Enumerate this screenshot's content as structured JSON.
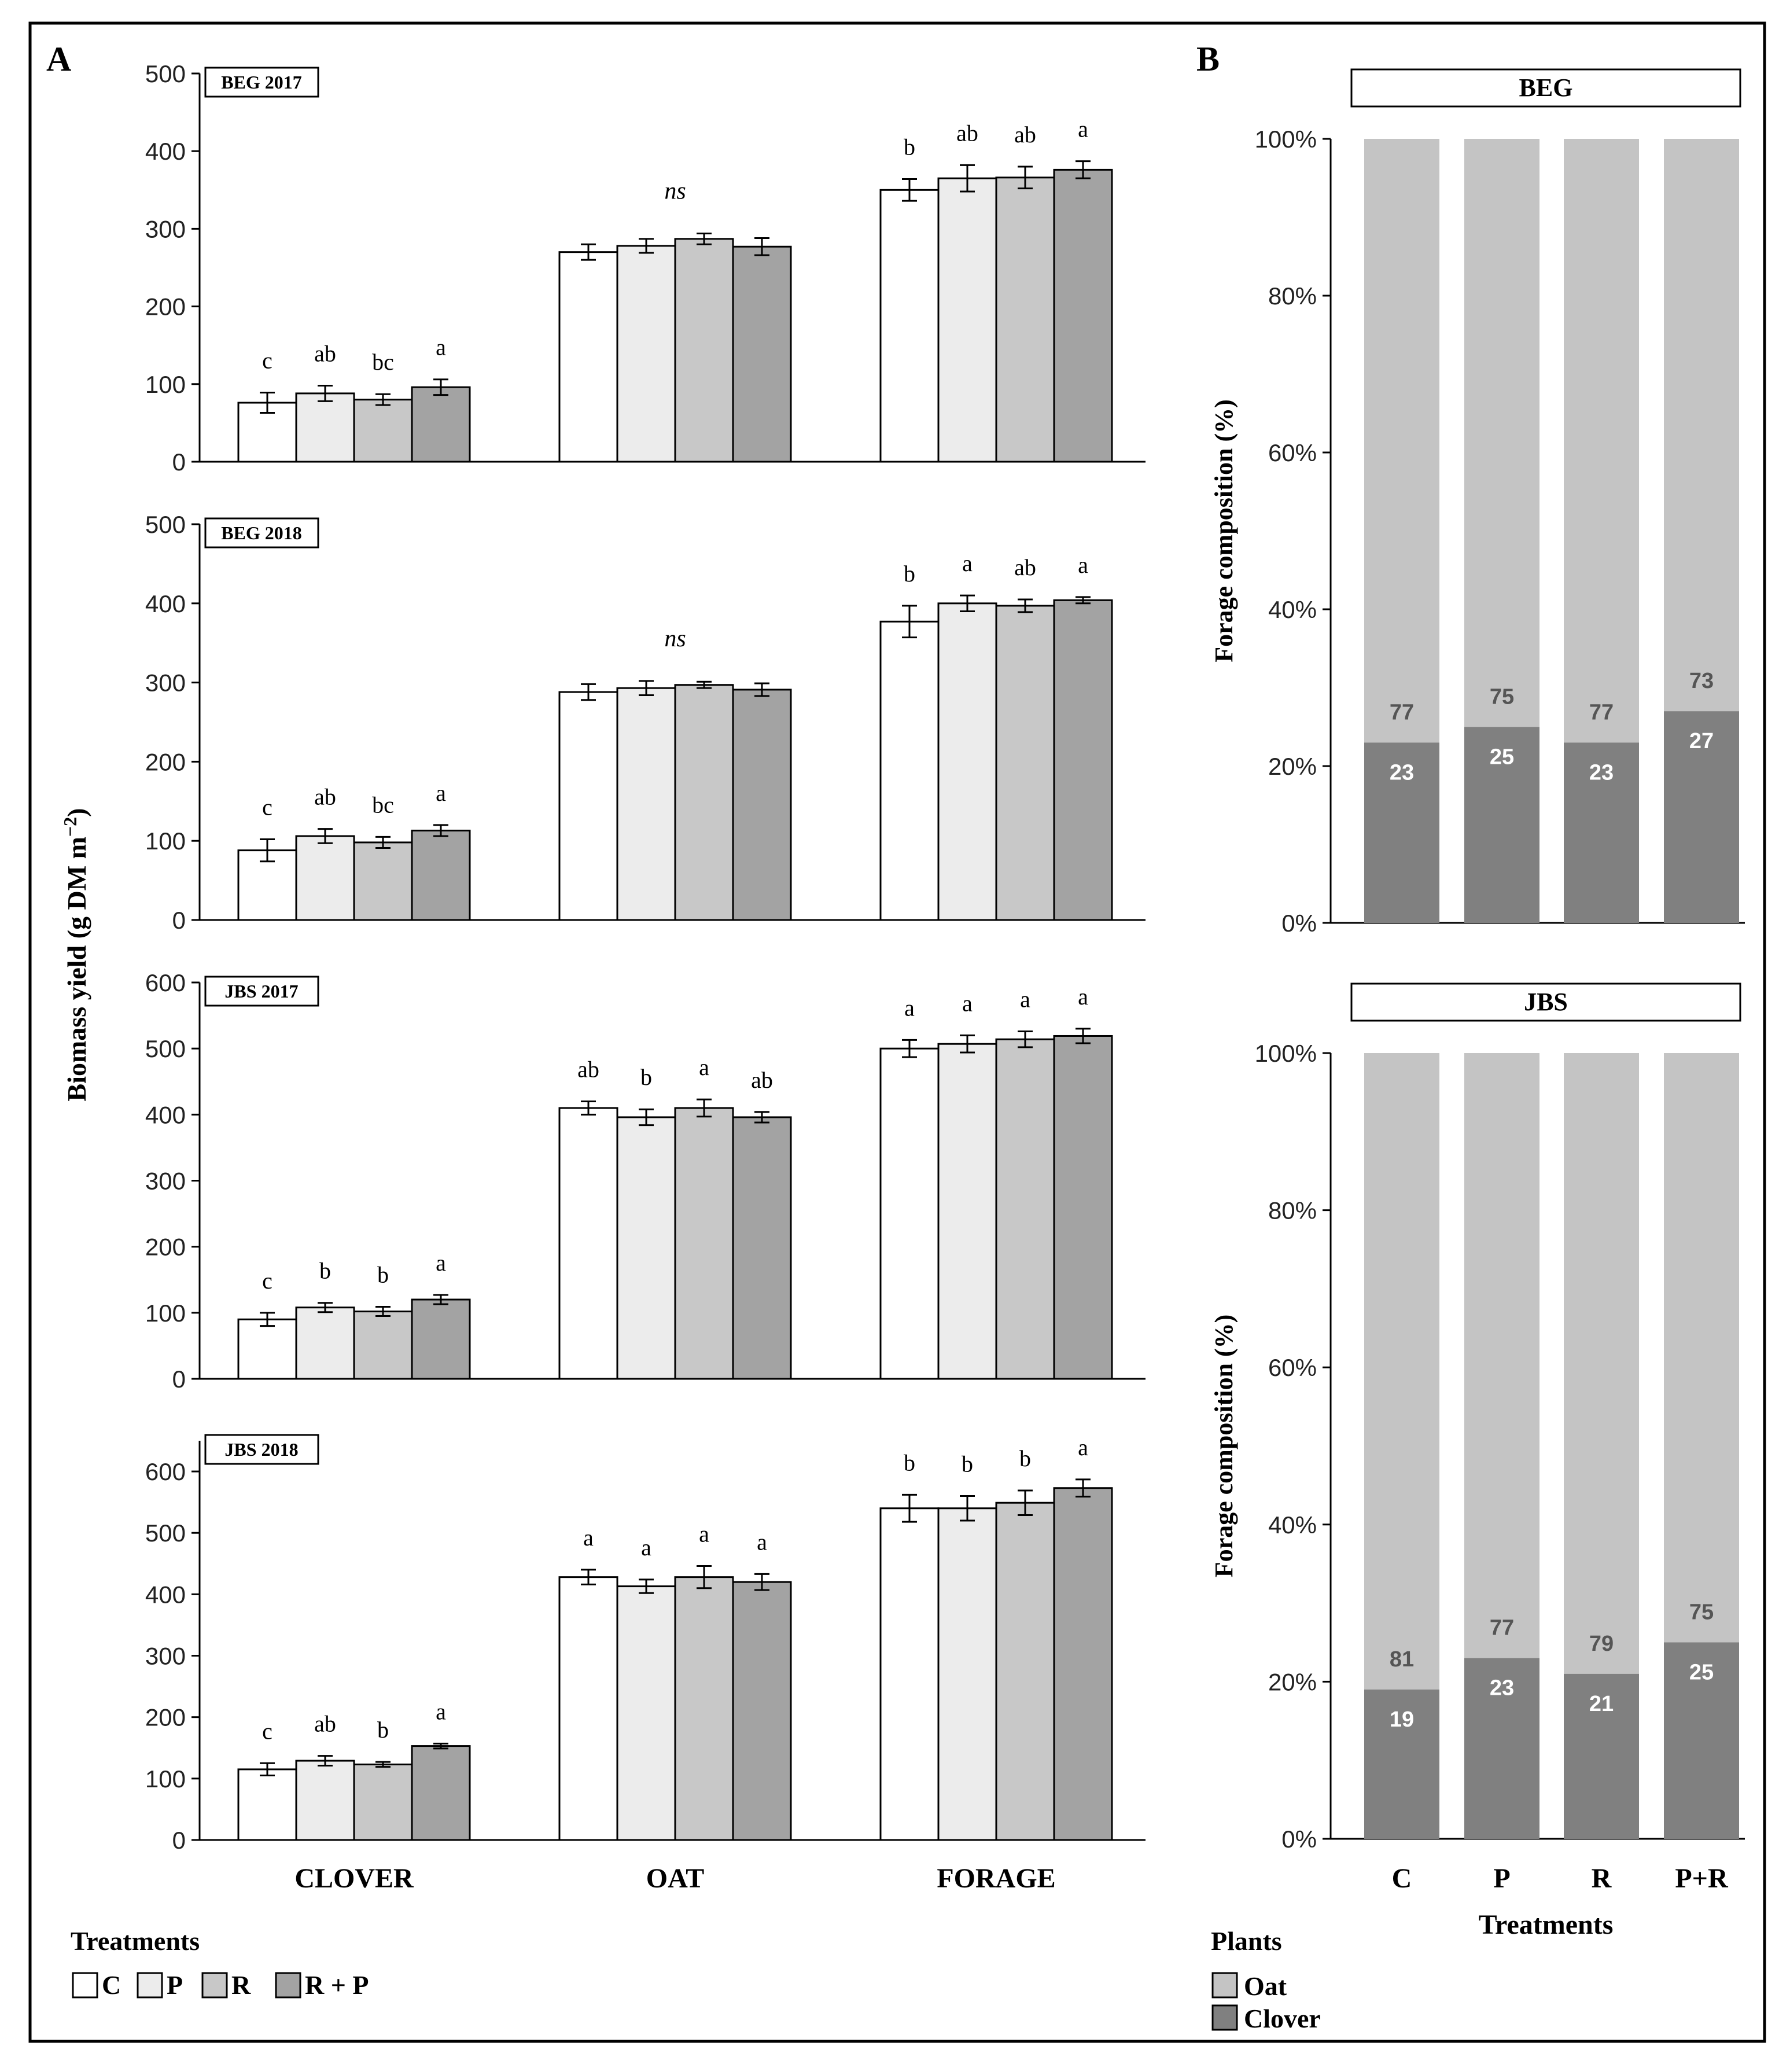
{
  "panel_labels": {
    "a": "A",
    "b": "B"
  },
  "y_axis_label": "Biomass yield (g DM m",
  "y_axis_label_sup": "−2",
  "y_axis_label_end": ")",
  "legend_a": {
    "title": "Treatments",
    "items": [
      "C",
      "P",
      "R",
      "R + P"
    ]
  },
  "legend_b": {
    "title": "Plants",
    "items": [
      "Oat",
      "Clover"
    ]
  },
  "colors": {
    "C": "#ffffff",
    "P": "#ececec",
    "R": "#c8c8c8",
    "RP": "#a3a3a3",
    "oat": "#c4c4c4",
    "clover": "#808080",
    "frame": "#000000"
  },
  "chart_data": [
    {
      "type": "bar",
      "title": "BEG 2017",
      "categories": [
        "CLOVER",
        "OAT",
        "FORAGE"
      ],
      "ylim": [
        0,
        500
      ],
      "yticks": [
        0,
        100,
        200,
        300,
        400,
        500
      ],
      "series": [
        {
          "name": "C",
          "values": [
            76,
            270,
            350
          ],
          "errors": [
            13,
            10,
            14
          ]
        },
        {
          "name": "P",
          "values": [
            88,
            278,
            365
          ],
          "errors": [
            10,
            9,
            17
          ]
        },
        {
          "name": "R",
          "values": [
            80,
            287,
            366
          ],
          "errors": [
            7,
            7,
            14
          ]
        },
        {
          "name": "R + P",
          "values": [
            96,
            277,
            376
          ],
          "errors": [
            10,
            11,
            11
          ]
        }
      ],
      "letters": [
        [
          "c",
          "ab",
          "bc",
          "a"
        ],
        [
          "",
          "",
          "",
          ""
        ],
        [
          "b",
          "ab",
          "ab",
          "a"
        ]
      ],
      "group_notes": [
        "",
        "ns",
        ""
      ]
    },
    {
      "type": "bar",
      "title": "BEG 2018",
      "categories": [
        "CLOVER",
        "OAT",
        "FORAGE"
      ],
      "ylim": [
        0,
        500
      ],
      "yticks": [
        0,
        100,
        200,
        300,
        400,
        500
      ],
      "series": [
        {
          "name": "C",
          "values": [
            88,
            288,
            377
          ],
          "errors": [
            14,
            10,
            20
          ]
        },
        {
          "name": "P",
          "values": [
            106,
            293,
            400
          ],
          "errors": [
            9,
            9,
            10
          ]
        },
        {
          "name": "R",
          "values": [
            98,
            297,
            397
          ],
          "errors": [
            7,
            4,
            8
          ]
        },
        {
          "name": "R + P",
          "values": [
            113,
            291,
            404
          ],
          "errors": [
            7,
            8,
            4
          ]
        }
      ],
      "letters": [
        [
          "c",
          "ab",
          "bc",
          "a"
        ],
        [
          "",
          "",
          "",
          ""
        ],
        [
          "b",
          "a",
          "ab",
          "a"
        ]
      ],
      "group_notes": [
        "",
        "ns",
        ""
      ]
    },
    {
      "type": "bar",
      "title": "JBS 2017",
      "categories": [
        "CLOVER",
        "OAT",
        "FORAGE"
      ],
      "ylim": [
        0,
        600
      ],
      "yticks": [
        0,
        100,
        200,
        300,
        400,
        500,
        600
      ],
      "series": [
        {
          "name": "C",
          "values": [
            90,
            410,
            500
          ],
          "errors": [
            10,
            10,
            13
          ]
        },
        {
          "name": "P",
          "values": [
            108,
            396,
            507
          ],
          "errors": [
            7,
            12,
            13
          ]
        },
        {
          "name": "R",
          "values": [
            102,
            410,
            514
          ],
          "errors": [
            7,
            13,
            12
          ]
        },
        {
          "name": "R + P",
          "values": [
            120,
            396,
            519
          ],
          "errors": [
            7,
            8,
            11
          ]
        }
      ],
      "letters": [
        [
          "c",
          "b",
          "b",
          "a"
        ],
        [
          "ab",
          "b",
          "a",
          "ab"
        ],
        [
          "a",
          "a",
          "a",
          "a"
        ]
      ],
      "group_notes": [
        "",
        "",
        ""
      ]
    },
    {
      "type": "bar",
      "title": "JBS 2018",
      "categories": [
        "CLOVER",
        "OAT",
        "FORAGE"
      ],
      "ylim": [
        0,
        650
      ],
      "yticks": [
        0,
        100,
        200,
        300,
        400,
        500,
        600
      ],
      "series": [
        {
          "name": "C",
          "values": [
            115,
            428,
            540
          ],
          "errors": [
            10,
            12,
            22
          ]
        },
        {
          "name": "P",
          "values": [
            129,
            413,
            540
          ],
          "errors": [
            8,
            11,
            20
          ]
        },
        {
          "name": "R",
          "values": [
            123,
            428,
            549
          ],
          "errors": [
            4,
            18,
            20
          ]
        },
        {
          "name": "R + P",
          "values": [
            153,
            420,
            573
          ],
          "errors": [
            4,
            13,
            14
          ]
        }
      ],
      "letters": [
        [
          "c",
          "ab",
          "b",
          "a"
        ],
        [
          "a",
          "a",
          "a",
          "a"
        ],
        [
          "b",
          "b",
          "b",
          "a"
        ]
      ],
      "group_notes": [
        "",
        "",
        ""
      ]
    },
    {
      "type": "bar",
      "subtype": "stacked_percent",
      "title": "BEG",
      "categories": [
        "C",
        "P",
        "R",
        "P+R"
      ],
      "ylabel": "Forage composition (%)",
      "ylim": [
        0,
        100
      ],
      "yticks": [
        "0%",
        "20%",
        "40%",
        "60%",
        "80%",
        "100%"
      ],
      "series": [
        {
          "name": "Clover",
          "values": [
            23,
            25,
            23,
            27
          ]
        },
        {
          "name": "Oat",
          "values": [
            77,
            75,
            77,
            73
          ]
        }
      ]
    },
    {
      "type": "bar",
      "subtype": "stacked_percent",
      "title": "JBS",
      "categories": [
        "C",
        "P",
        "R",
        "P+R"
      ],
      "xlabel": "Treatments",
      "ylabel": "Forage composition (%)",
      "ylim": [
        0,
        100
      ],
      "yticks": [
        "0%",
        "20%",
        "40%",
        "60%",
        "80%",
        "100%"
      ],
      "series": [
        {
          "name": "Clover",
          "values": [
            19,
            23,
            21,
            25
          ]
        },
        {
          "name": "Oat",
          "values": [
            81,
            77,
            79,
            75
          ]
        }
      ]
    }
  ]
}
